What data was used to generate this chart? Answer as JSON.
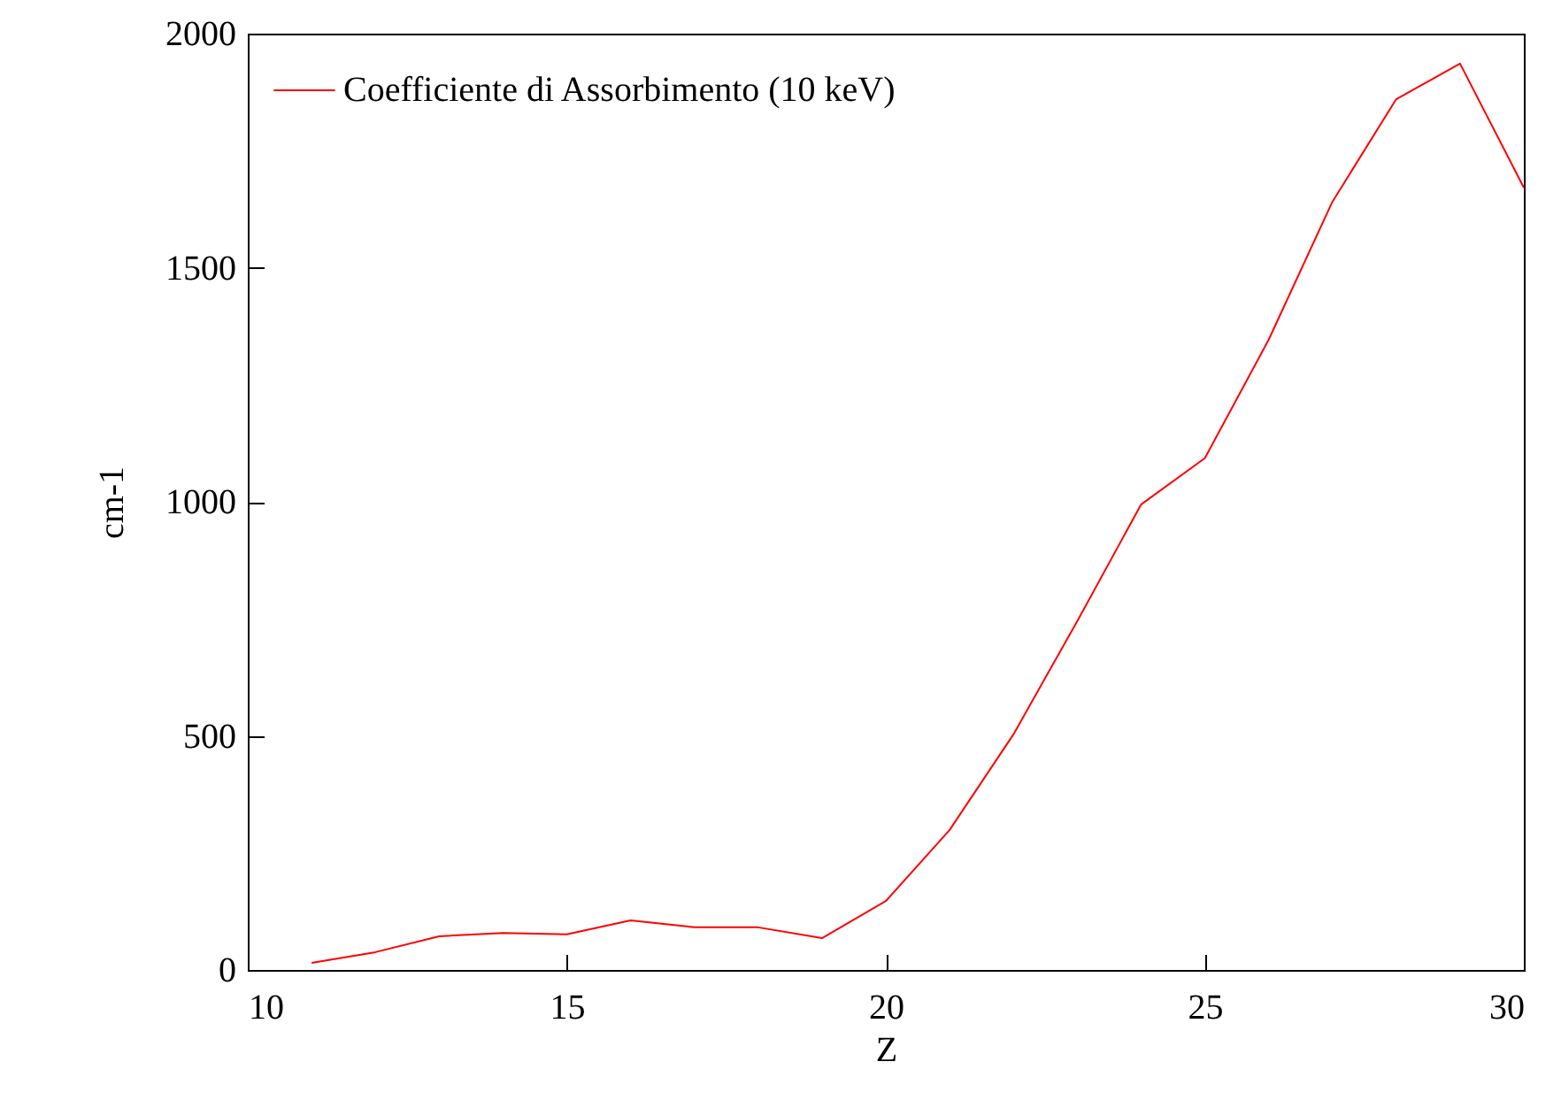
{
  "chart_data": {
    "type": "line",
    "xlabel": "Z",
    "ylabel": "cm-1",
    "x": [
      11,
      12,
      13,
      14,
      15,
      16,
      17,
      18,
      19,
      20,
      21,
      22,
      23,
      24,
      25,
      26,
      27,
      28,
      29,
      30
    ],
    "series": [
      {
        "name": "Coefficiente di Assorbimento (10 keV)",
        "color": "#ff0000",
        "values": [
          15,
          38,
          72,
          79,
          76,
          106,
          91,
          91,
          68,
          147,
          299,
          503,
          745,
          994,
          1093,
          1346,
          1641,
          1860,
          1936,
          1671
        ]
      }
    ],
    "xlim": [
      10,
      30
    ],
    "xticks": [
      10,
      15,
      20,
      25,
      30
    ],
    "ylim": [
      0,
      2000
    ],
    "yticks": [
      0,
      500,
      1000,
      1500,
      2000
    ],
    "grid": false,
    "legend": "top left",
    "marker": "none",
    "line_style": "solid"
  }
}
